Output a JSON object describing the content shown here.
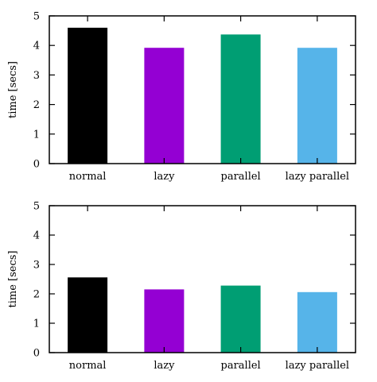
{
  "chart_data": [
    {
      "type": "bar",
      "categories": [
        "normal",
        "lazy",
        "parallel",
        "lazy parallel"
      ],
      "values": [
        4.6,
        3.92,
        4.37,
        3.92
      ],
      "colors": [
        "#000000",
        "#9400d3",
        "#009e73",
        "#56b4e9"
      ],
      "title": "",
      "xlabel": "",
      "ylabel": "time [secs]",
      "ylim": [
        0,
        5
      ],
      "yticks": [
        "0",
        "1",
        "2",
        "3",
        "4",
        "5"
      ],
      "grid": false,
      "legend": "none"
    },
    {
      "type": "bar",
      "categories": [
        "normal",
        "lazy",
        "parallel",
        "lazy parallel"
      ],
      "values": [
        2.56,
        2.15,
        2.28,
        2.06
      ],
      "colors": [
        "#000000",
        "#9400d3",
        "#009e73",
        "#56b4e9"
      ],
      "title": "",
      "xlabel": "",
      "ylabel": "time [secs]",
      "ylim": [
        0,
        5
      ],
      "yticks": [
        "0",
        "1",
        "2",
        "3",
        "4",
        "5"
      ],
      "grid": false,
      "legend": "none"
    }
  ]
}
